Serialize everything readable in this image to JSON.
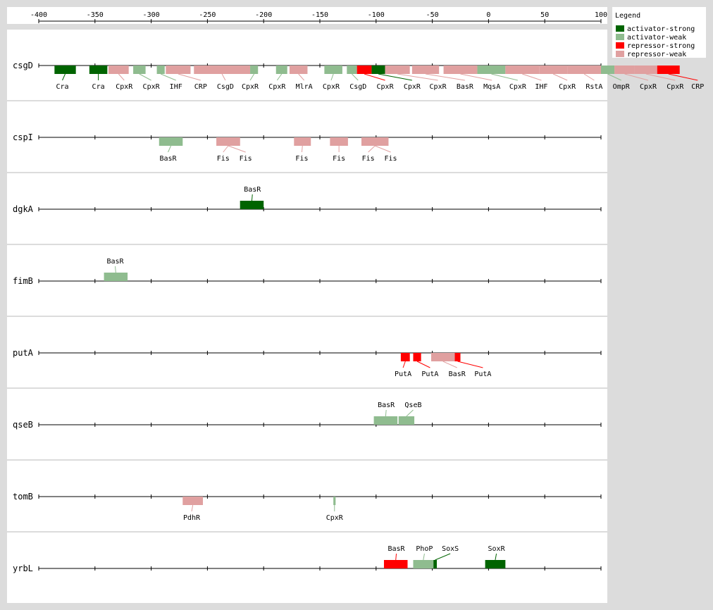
{
  "colors": {
    "activator-strong": "#006400",
    "activator-weak": "#8fbc8f",
    "repressor-strong": "#ff0000",
    "repressor-weak": "#e0a0a0"
  },
  "axis": {
    "min": -400,
    "max": 100,
    "ticks": [
      -400,
      -350,
      -300,
      -250,
      -200,
      -150,
      -100,
      -50,
      0,
      50,
      100
    ]
  },
  "legend": {
    "title": "Legend",
    "items": [
      {
        "key": "activator-strong",
        "label": "activator-strong"
      },
      {
        "key": "activator-weak",
        "label": "activator-weak"
      },
      {
        "key": "repressor-strong",
        "label": "repressor-strong"
      },
      {
        "key": "repressor-weak",
        "label": "repressor-weak"
      }
    ]
  },
  "genes": [
    {
      "name": "csgD",
      "sites": [
        {
          "label": "Cra",
          "type": "activator-strong",
          "start": -386,
          "end": -367,
          "label_pos": -379,
          "side": "below"
        },
        {
          "label": "Cra",
          "type": "activator-strong",
          "start": -355,
          "end": -339,
          "label_pos": -347,
          "side": "below"
        },
        {
          "label": "CpxR",
          "type": "repressor-weak",
          "start": -338,
          "end": -320,
          "label_pos": -324,
          "side": "below"
        },
        {
          "label": "CpxR",
          "type": "activator-weak",
          "start": -316,
          "end": -305,
          "label_pos": -300,
          "side": "below"
        },
        {
          "label": "IHF",
          "type": "activator-weak",
          "start": -295,
          "end": -288,
          "label_pos": -278,
          "side": "below"
        },
        {
          "label": "CRP",
          "type": "repressor-weak",
          "start": -287,
          "end": -265,
          "label_pos": -256,
          "side": "below"
        },
        {
          "label": "CsgD",
          "type": "repressor-weak",
          "start": -262,
          "end": -212,
          "label_pos": -234,
          "side": "below"
        },
        {
          "label": "CpxR",
          "type": "activator-weak",
          "start": -212,
          "end": -205,
          "label_pos": -212,
          "side": "below"
        },
        {
          "label": "CpxR",
          "type": "activator-weak",
          "start": -189,
          "end": -179,
          "label_pos": -188,
          "side": "below"
        },
        {
          "label": "MlrA",
          "type": "repressor-weak",
          "start": -177,
          "end": -161,
          "label_pos": -164,
          "side": "below"
        },
        {
          "label": "CpxR",
          "type": "activator-weak",
          "start": -146,
          "end": -130,
          "label_pos": -140,
          "side": "below"
        },
        {
          "label": "CsgD",
          "type": "activator-weak",
          "start": -126,
          "end": -117,
          "label_pos": -116,
          "side": "below"
        },
        {
          "label": "CpxR",
          "type": "repressor-strong",
          "start": -117,
          "end": -104,
          "label_pos": -92,
          "side": "below"
        },
        {
          "label": "CpxR",
          "type": "activator-strong",
          "start": -104,
          "end": -92,
          "label_pos": -68,
          "side": "below"
        },
        {
          "label": "CpxR",
          "type": "repressor-weak",
          "start": -92,
          "end": -70,
          "label_pos": -45,
          "side": "below"
        },
        {
          "label": "BasR",
          "type": "repressor-weak",
          "start": -68,
          "end": -44,
          "label_pos": -21,
          "side": "below"
        },
        {
          "label": "MqsA",
          "type": "repressor-weak",
          "start": -40,
          "end": -10,
          "label_pos": 3,
          "side": "below"
        },
        {
          "label": "CpxR",
          "type": "activator-weak",
          "start": -10,
          "end": 15,
          "label_pos": 26,
          "side": "below"
        },
        {
          "label": "IHF",
          "type": "repressor-weak",
          "start": 15,
          "end": 45,
          "label_pos": 47,
          "side": "below"
        },
        {
          "label": "CpxR",
          "type": "repressor-weak",
          "start": 45,
          "end": 70,
          "label_pos": 70,
          "side": "below"
        },
        {
          "label": "RstA",
          "type": "repressor-weak",
          "start": 70,
          "end": 100,
          "label_pos": 94,
          "side": "below"
        },
        {
          "label": "OmpR",
          "type": "activator-weak",
          "start": 100,
          "end": 112,
          "label_pos": 118,
          "side": "below"
        },
        {
          "label": "CpxR",
          "type": "repressor-weak",
          "start": 112,
          "end": 130,
          "label_pos": 142,
          "side": "below"
        },
        {
          "label": "CpxR",
          "type": "repressor-weak",
          "start": 130,
          "end": 150,
          "label_pos": 166,
          "side": "below"
        },
        {
          "label": "CRP",
          "type": "repressor-strong",
          "start": 150,
          "end": 170,
          "label_pos": 186,
          "side": "below"
        }
      ]
    },
    {
      "name": "cspI",
      "sites": [
        {
          "label": "BasR",
          "type": "activator-weak",
          "start": -293,
          "end": -272,
          "label_pos": -285,
          "side": "below"
        },
        {
          "label": "Fis",
          "type": "repressor-weak",
          "start": -242,
          "end": -221,
          "label_pos": -236,
          "side": "below"
        },
        {
          "label": "Fis",
          "type": "repressor-weak",
          "start": -242,
          "end": -221,
          "label_pos": -216,
          "side": "below"
        },
        {
          "label": "Fis",
          "type": "repressor-weak",
          "start": -173,
          "end": -158,
          "label_pos": -166,
          "side": "below"
        },
        {
          "label": "Fis",
          "type": "repressor-weak",
          "start": -141,
          "end": -125,
          "label_pos": -133,
          "side": "below"
        },
        {
          "label": "Fis",
          "type": "repressor-weak",
          "start": -113,
          "end": -89,
          "label_pos": -107,
          "side": "below"
        },
        {
          "label": "Fis",
          "type": "repressor-weak",
          "start": -113,
          "end": -89,
          "label_pos": -87,
          "side": "below"
        }
      ]
    },
    {
      "name": "dgkA",
      "sites": [
        {
          "label": "BasR",
          "type": "activator-strong",
          "start": -221,
          "end": -200,
          "label_pos": -210,
          "side": "above"
        }
      ]
    },
    {
      "name": "fimB",
      "sites": [
        {
          "label": "BasR",
          "type": "activator-weak",
          "start": -342,
          "end": -321,
          "label_pos": -332,
          "side": "above"
        }
      ]
    },
    {
      "name": "putA",
      "sites": [
        {
          "label": "PutA",
          "type": "repressor-strong",
          "start": -78,
          "end": -70,
          "label_pos": -76,
          "side": "below"
        },
        {
          "label": "PutA",
          "type": "repressor-strong",
          "start": -67,
          "end": -60,
          "label_pos": -52,
          "side": "below"
        },
        {
          "label": "BasR",
          "type": "repressor-weak",
          "start": -51,
          "end": -30,
          "label_pos": -28,
          "side": "below"
        },
        {
          "label": "PutA",
          "type": "repressor-strong",
          "start": -30,
          "end": -25,
          "label_pos": -5,
          "side": "below"
        }
      ]
    },
    {
      "name": "qseB",
      "sites": [
        {
          "label": "BasR",
          "type": "activator-weak",
          "start": -102,
          "end": -81,
          "label_pos": -91,
          "side": "above"
        },
        {
          "label": "QseB",
          "type": "activator-weak",
          "start": -80,
          "end": -66,
          "label_pos": -67,
          "side": "above"
        }
      ]
    },
    {
      "name": "tomB",
      "sites": [
        {
          "label": "PdhR",
          "type": "repressor-weak",
          "start": -272,
          "end": -254,
          "label_pos": -264,
          "side": "below"
        },
        {
          "label": "CpxR",
          "type": "activator-weak",
          "start": -138,
          "end": -136,
          "label_pos": -137,
          "side": "below"
        }
      ]
    },
    {
      "name": "yrbL",
      "sites": [
        {
          "label": "BasR",
          "type": "repressor-strong",
          "start": -93,
          "end": -72,
          "label_pos": -82,
          "side": "above"
        },
        {
          "label": "PhoP",
          "type": "activator-weak",
          "start": -67,
          "end": -49,
          "label_pos": -57,
          "side": "above"
        },
        {
          "label": "SoxS",
          "type": "activator-strong",
          "start": -49,
          "end": -46,
          "label_pos": -34,
          "side": "above"
        },
        {
          "label": "SoxR",
          "type": "activator-strong",
          "start": -3,
          "end": 15,
          "label_pos": 7,
          "side": "above"
        }
      ]
    }
  ]
}
